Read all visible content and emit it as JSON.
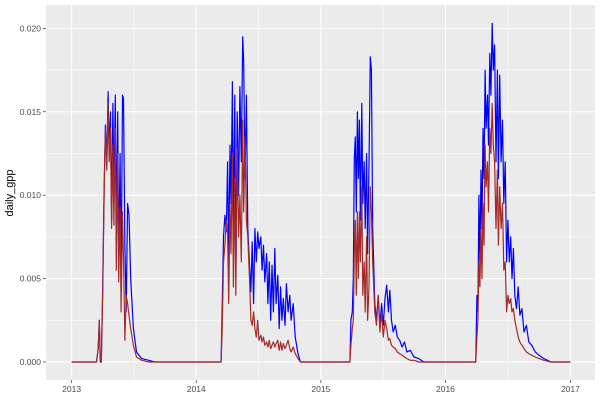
{
  "chart_data": {
    "type": "line",
    "title": "",
    "xlabel": "",
    "ylabel": "daily_gpp",
    "xlim": [
      "2012-10-18",
      "2017-03-14"
    ],
    "ylim": [
      -0.00108,
      0.0214
    ],
    "x_ticks": [
      {
        "date": "2013-01-01",
        "label": "2013"
      },
      {
        "date": "2014-01-01",
        "label": "2014"
      },
      {
        "date": "2015-01-01",
        "label": "2015"
      },
      {
        "date": "2016-01-01",
        "label": "2016"
      },
      {
        "date": "2017-01-01",
        "label": "2017"
      }
    ],
    "y_ticks": [
      {
        "value": 0.0,
        "label": "0.000"
      },
      {
        "value": 0.005,
        "label": "0.005"
      },
      {
        "value": 0.01,
        "label": "0.010"
      },
      {
        "value": 0.015,
        "label": "0.015"
      },
      {
        "value": 0.02,
        "label": "0.020"
      }
    ],
    "grid": true,
    "legend": "none",
    "panel_background": "#EBEBEB",
    "grid_color": "#FFFFFF",
    "x": [
      "2013-01-01",
      "2013-03-15",
      "2013-03-20",
      "2013-03-23",
      "2013-03-26",
      "2013-03-29",
      "2013-04-02",
      "2013-04-06",
      "2013-04-10",
      "2013-04-14",
      "2013-04-18",
      "2013-04-21",
      "2013-04-25",
      "2013-04-28",
      "2013-05-02",
      "2013-05-05",
      "2013-05-09",
      "2013-05-12",
      "2013-05-16",
      "2013-05-19",
      "2013-05-23",
      "2013-05-26",
      "2013-05-30",
      "2013-06-02",
      "2013-06-06",
      "2013-06-10",
      "2013-06-14",
      "2013-06-18",
      "2013-06-23",
      "2013-07-01",
      "2013-07-10",
      "2013-07-25",
      "2013-08-15",
      "2013-09-01",
      "2014-03-15",
      "2014-03-18",
      "2014-03-22",
      "2014-03-26",
      "2014-03-30",
      "2014-04-03",
      "2014-04-06",
      "2014-04-10",
      "2014-04-13",
      "2014-04-17",
      "2014-04-20",
      "2014-04-24",
      "2014-04-27",
      "2014-05-01",
      "2014-05-05",
      "2014-05-09",
      "2014-05-13",
      "2014-05-17",
      "2014-05-20",
      "2014-05-24",
      "2014-05-28",
      "2014-06-01",
      "2014-06-06",
      "2014-06-10",
      "2014-06-14",
      "2014-06-18",
      "2014-06-22",
      "2014-06-26",
      "2014-06-30",
      "2014-07-04",
      "2014-07-09",
      "2014-07-13",
      "2014-07-17",
      "2014-07-21",
      "2014-07-26",
      "2014-07-30",
      "2014-08-03",
      "2014-08-07",
      "2014-08-11",
      "2014-08-15",
      "2014-08-19",
      "2014-08-23",
      "2014-08-28",
      "2014-09-01",
      "2014-09-05",
      "2014-09-09",
      "2014-09-13",
      "2014-09-18",
      "2014-09-22",
      "2014-09-27",
      "2014-10-02",
      "2014-10-06",
      "2014-10-12",
      "2014-10-18",
      "2014-10-26",
      "2014-11-02",
      "2015-03-27",
      "2015-03-30",
      "2015-04-03",
      "2015-04-06",
      "2015-04-09",
      "2015-04-12",
      "2015-04-15",
      "2015-04-18",
      "2015-04-21",
      "2015-04-24",
      "2015-04-27",
      "2015-05-01",
      "2015-05-04",
      "2015-05-08",
      "2015-05-11",
      "2015-05-15",
      "2015-05-18",
      "2015-05-22",
      "2015-05-26",
      "2015-05-29",
      "2015-06-02",
      "2015-06-08",
      "2015-06-13",
      "2015-06-18",
      "2015-06-23",
      "2015-06-28",
      "2015-07-03",
      "2015-07-08",
      "2015-07-13",
      "2015-07-18",
      "2015-07-22",
      "2015-07-27",
      "2015-08-01",
      "2015-08-07",
      "2015-08-13",
      "2015-08-20",
      "2015-08-27",
      "2015-09-03",
      "2015-09-10",
      "2015-09-20",
      "2015-10-01",
      "2015-10-15",
      "2015-10-30",
      "2016-03-30",
      "2016-04-02",
      "2016-04-05",
      "2016-04-08",
      "2016-04-11",
      "2016-04-14",
      "2016-04-17",
      "2016-04-20",
      "2016-04-23",
      "2016-04-26",
      "2016-04-29",
      "2016-05-03",
      "2016-05-06",
      "2016-05-10",
      "2016-05-13",
      "2016-05-17",
      "2016-05-20",
      "2016-05-24",
      "2016-05-28",
      "2016-06-01",
      "2016-06-04",
      "2016-06-08",
      "2016-06-12",
      "2016-06-16",
      "2016-06-20",
      "2016-06-24",
      "2016-06-28",
      "2016-07-02",
      "2016-07-06",
      "2016-07-10",
      "2016-07-14",
      "2016-07-18",
      "2016-07-22",
      "2016-07-27",
      "2016-08-01",
      "2016-08-06",
      "2016-08-12",
      "2016-08-18",
      "2016-08-25",
      "2016-09-01",
      "2016-09-10",
      "2016-09-20",
      "2016-10-01",
      "2016-10-15",
      "2016-11-05",
      "2017-01-01"
    ],
    "series": [
      {
        "color": "#0000FF",
        "values": [
          0,
          0,
          0.0008,
          0.0025,
          0,
          0,
          0.0045,
          0.01,
          0.0142,
          0.012,
          0.0162,
          0.0125,
          0.015,
          0.0085,
          0.0155,
          0.01,
          0.016,
          0.008,
          0.015,
          0.006,
          0.0125,
          0.0043,
          0.016,
          0.0158,
          0.007,
          0.003,
          0.0095,
          0.0088,
          0.005,
          0.002,
          0.0006,
          0.0002,
          0.0001,
          0,
          0,
          0.0033,
          0.0075,
          0.0088,
          0.0078,
          0.012,
          0.006,
          0.013,
          0.0095,
          0.0168,
          0.0075,
          0.016,
          0.005,
          0.015,
          0.01,
          0.0165,
          0.012,
          0.0195,
          0.018,
          0.011,
          0.016,
          0.008,
          0.0058,
          0.0042,
          0.0072,
          0.0035,
          0.008,
          0.006,
          0.0078,
          0.0068,
          0.0075,
          0.0055,
          0.007,
          0.0048,
          0.0065,
          0.0035,
          0.006,
          0.0025,
          0.0058,
          0.003,
          0.0068,
          0.0035,
          0.0052,
          0.002,
          0.0045,
          0.0025,
          0.0038,
          0.0022,
          0.0047,
          0.003,
          0.004,
          0.0025,
          0.0035,
          0.0015,
          0.0005,
          0,
          0,
          0.0025,
          0.003,
          0.005,
          0.0122,
          0.0135,
          0.009,
          0.015,
          0.011,
          0.0145,
          0.0085,
          0.0155,
          0.0095,
          0.012,
          0.008,
          0.0125,
          0.0065,
          0.0118,
          0.0183,
          0.0175,
          0.008,
          0.0035,
          0.0025,
          0.004,
          0.0022,
          0.0035,
          0.0022,
          0.0038,
          0.0046,
          0.003,
          0.0043,
          0.0025,
          0.0018,
          0.0022,
          0.0015,
          0.0013,
          0.0009,
          0.0012,
          0.0006,
          0.0007,
          0.0003,
          0.0002,
          0,
          0,
          0.004,
          0.003,
          0.01,
          0.006,
          0.0115,
          0.008,
          0.014,
          0.011,
          0.0175,
          0.014,
          0.016,
          0.013,
          0.0185,
          0.016,
          0.0203,
          0.0175,
          0.019,
          0.012,
          0.0175,
          0.011,
          0.0172,
          0.012,
          0.0145,
          0.0095,
          0.012,
          0.006,
          0.0085,
          0.006,
          0.0075,
          0.005,
          0.0068,
          0.004,
          0.0032,
          0.0045,
          0.0028,
          0.0032,
          0.0018,
          0.0022,
          0.0012,
          0.001,
          0.0006,
          0.0004,
          0.0002,
          0,
          0
        ]
      },
      {
        "color": "#A52A2A",
        "values": [
          0,
          0,
          0.0008,
          0.0025,
          0.0002,
          0,
          0.004,
          0.0095,
          0.014,
          0.0115,
          0.0155,
          0.012,
          0.014,
          0.008,
          0.013,
          0.0082,
          0.014,
          0.0055,
          0.0125,
          0.0048,
          0.0093,
          0.003,
          0.009,
          0.0062,
          0.0013,
          0.004,
          0.0035,
          0.0028,
          0.002,
          0.001,
          0.0003,
          0.0001,
          0,
          0,
          0,
          0.002,
          0.006,
          0.007,
          0.0085,
          0.0078,
          0.0035,
          0.0095,
          0.0065,
          0.0125,
          0.0045,
          0.011,
          0.004,
          0.0128,
          0.0075,
          0.01,
          0.006,
          0.0145,
          0.009,
          0.0135,
          0.0085,
          0.0075,
          0.005,
          0.0025,
          0.0022,
          0.003,
          0.002,
          0.0015,
          0.0025,
          0.0013,
          0.0016,
          0.0012,
          0.0015,
          0.001,
          0.0012,
          0.0009,
          0.0013,
          0.0008,
          0.001,
          0.0012,
          0.0009,
          0.0011,
          0.0013,
          0.0007,
          0.0012,
          0.0007,
          0.0011,
          0.0008,
          0.001,
          0.0013,
          0.0008,
          0.0006,
          0.0009,
          0.0005,
          0.0002,
          0,
          0,
          0.001,
          0.002,
          0.0025,
          0.0065,
          0.0085,
          0.004,
          0.009,
          0.005,
          0.009,
          0.006,
          0.0105,
          0.004,
          0.006,
          0.003,
          0.0075,
          0.0025,
          0.0045,
          0.0105,
          0.009,
          0.006,
          0.003,
          0.0022,
          0.004,
          0.0018,
          0.003,
          0.0015,
          0.0025,
          0.002,
          0.0013,
          0.0014,
          0.001,
          0.0009,
          0.0008,
          0.0006,
          0.0005,
          0.0004,
          0.0003,
          0.0002,
          0.0001,
          0.0001,
          0,
          0,
          0,
          0.0015,
          0.0025,
          0.006,
          0.0045,
          0.008,
          0.005,
          0.0095,
          0.007,
          0.013,
          0.0105,
          0.012,
          0.009,
          0.014,
          0.0125,
          0.0155,
          0.013,
          0.012,
          0.008,
          0.0115,
          0.007,
          0.0105,
          0.008,
          0.0095,
          0.0055,
          0.006,
          0.003,
          0.004,
          0.0035,
          0.0038,
          0.003,
          0.0032,
          0.0025,
          0.002,
          0.0015,
          0.0012,
          0.001,
          0.0008,
          0.0006,
          0.0005,
          0.0004,
          0.0003,
          0.0002,
          0.0001,
          0,
          0
        ]
      }
    ]
  }
}
